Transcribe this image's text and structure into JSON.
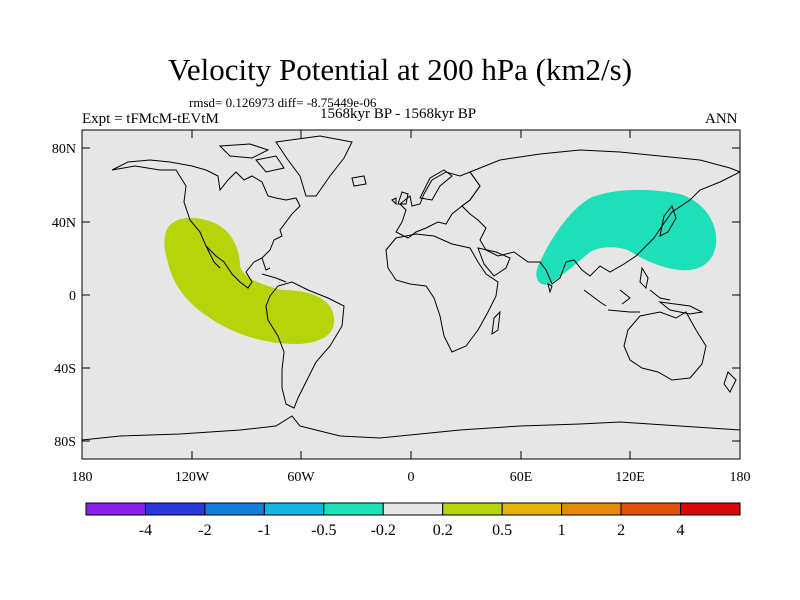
{
  "header": {
    "title": "Velocity Potential at 200 hPa (km2/s)",
    "stats": "rmsd= 0.126973 diff= -8.75449e-06",
    "experiment": "Expt = tFMcM-tEVtM",
    "period": "1568kyr BP - 1568kyr BP",
    "season": "ANN"
  },
  "map": {
    "background_color": "#e6e6e6",
    "lat_ticks": [
      "80N",
      "40N",
      "0",
      "40S",
      "80S"
    ],
    "lon_ticks": [
      "180",
      "120W",
      "60W",
      "0",
      "60E",
      "120E",
      "180"
    ],
    "anomalies": [
      {
        "name": "positive-anomaly-americas",
        "level": "0.2 to 0.5",
        "color": "#b7d30a"
      },
      {
        "name": "negative-anomaly-east-asia",
        "level": "-0.5 to -0.2",
        "color": "#1fdfb9"
      }
    ]
  },
  "colorbar": {
    "colors": [
      "#8a1fe6",
      "#2a36d6",
      "#137ed9",
      "#14b3e0",
      "#1fdfb9",
      "#e6e6e6",
      "#b7d30a",
      "#e3b30a",
      "#e38a0a",
      "#e0520a",
      "#d9070a"
    ],
    "labels": [
      "-4",
      "-2",
      "-1",
      "-0.5",
      "-0.2",
      "0.2",
      "0.5",
      "1",
      "2",
      "4"
    ]
  }
}
